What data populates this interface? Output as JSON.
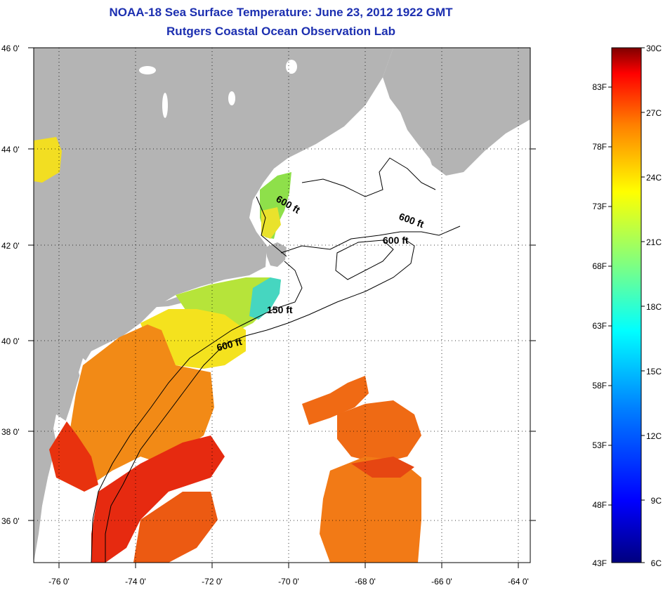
{
  "title": {
    "line1": "NOAA-18 Sea Surface Temperature:  June 23, 2012 1922 GMT",
    "line2": "Rutgers Coastal Ocean Observation Lab"
  },
  "axes": {
    "lat_labels": [
      "46 0'",
      "44 0'",
      "42 0'",
      "40 0'",
      "38 0'",
      "36 0'"
    ],
    "lon_labels": [
      "-76 0'",
      "-74 0'",
      "-72 0'",
      "-70 0'",
      "-68 0'",
      "-66 0'",
      "-64 0'"
    ]
  },
  "contours": {
    "labels": [
      "600 ft",
      "600 ft",
      "600 ft",
      "150 ft",
      "600 ft"
    ]
  },
  "colorbar": {
    "f_labels": [
      "83F",
      "78F",
      "73F",
      "68F",
      "63F",
      "58F",
      "53F",
      "48F",
      "43F"
    ],
    "c_labels": [
      "30C",
      "27C",
      "24C",
      "21C",
      "18C",
      "15C",
      "12C",
      "9C",
      "6C"
    ]
  },
  "colors": {
    "land": "#b4b4b4",
    "ocean_nodata": "#ffffff",
    "title": "#1c2fb0",
    "warm": "#e8200c",
    "orange": "#f56a10",
    "yellow": "#f2e21c",
    "green": "#6ad84a",
    "cyan": "#2fd4d8"
  }
}
